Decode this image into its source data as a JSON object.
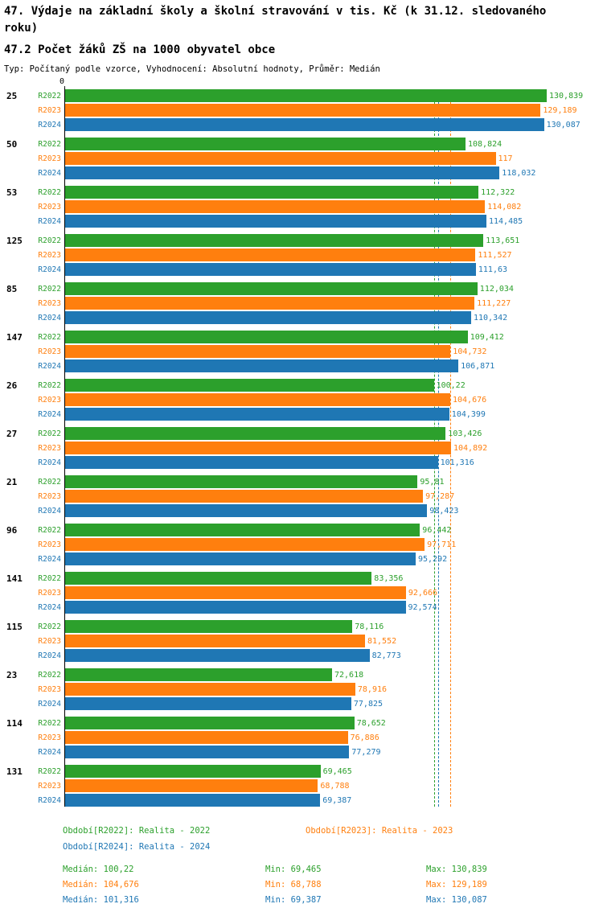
{
  "header": {
    "title": "47. Výdaje na základní školy a školní stravování v tis. Kč (k 31.12. sledovaného roku)",
    "subtitle": "47.2 Počet žáků ZŠ na 1000 obyvatel obce",
    "meta": "Typ: Počítaný podle vzorce, Vyhodnocení: Absolutní hodnoty, Průměr: Medián"
  },
  "colors": {
    "r2022": "#2ca02c",
    "r2023": "#ff7f0e",
    "r2024": "#1f77b4"
  },
  "chart_data": {
    "type": "bar",
    "orientation": "horizontal",
    "title": "47.2 Počet žáků ZŠ na 1000 obyvatel obce",
    "xlabel": "",
    "ylabel": "",
    "x_origin_label": "0",
    "xlim": [
      0,
      130.839
    ],
    "grid": false,
    "legend_position": "bottom",
    "categories": [
      "25",
      "50",
      "53",
      "125",
      "85",
      "147",
      "26",
      "27",
      "21",
      "96",
      "141",
      "115",
      "23",
      "114",
      "131"
    ],
    "series": [
      {
        "name": "R2022",
        "color": "#2ca02c",
        "values": [
          130.839,
          108.824,
          112.322,
          113.651,
          112.034,
          109.412,
          100.22,
          103.426,
          95.81,
          96.442,
          83.356,
          78.116,
          72.618,
          78.652,
          69.465
        ]
      },
      {
        "name": "R2023",
        "color": "#ff7f0e",
        "values": [
          129.189,
          117,
          114.082,
          111.527,
          111.227,
          104.732,
          104.676,
          104.892,
          97.287,
          97.711,
          92.666,
          81.552,
          78.916,
          76.886,
          68.788
        ]
      },
      {
        "name": "R2024",
        "color": "#1f77b4",
        "values": [
          130.087,
          118.032,
          114.485,
          111.63,
          110.342,
          106.871,
          104.399,
          101.316,
          98.423,
          95.292,
          92.574,
          82.773,
          77.825,
          77.279,
          69.387
        ]
      }
    ],
    "median_lines": [
      {
        "series": "R2022",
        "value": 100.22,
        "color": "#2ca02c"
      },
      {
        "series": "R2023",
        "value": 104.676,
        "color": "#ff7f0e"
      },
      {
        "series": "R2024",
        "value": 101.316,
        "color": "#1f77b4"
      }
    ]
  },
  "legend": {
    "items": [
      {
        "label": "Období[R2022]: Realita - 2022",
        "series": "R2022",
        "color": "#2ca02c"
      },
      {
        "label": "Období[R2023]: Realita - 2023",
        "series": "R2023",
        "color": "#ff7f0e"
      },
      {
        "label": "Období[R2024]: Realita - 2024",
        "series": "R2024",
        "color": "#1f77b4"
      }
    ]
  },
  "stats": {
    "rows": [
      {
        "series": "R2022",
        "color": "#2ca02c",
        "median": "Medián: 100,22",
        "min": "Min: 69,465",
        "max": "Max: 130,839"
      },
      {
        "series": "R2023",
        "color": "#ff7f0e",
        "median": "Medián: 104,676",
        "min": "Min: 68,788",
        "max": "Max: 129,189"
      },
      {
        "series": "R2024",
        "color": "#1f77b4",
        "median": "Medián: 101,316",
        "min": "Min: 69,387",
        "max": "Max: 130,087"
      }
    ]
  }
}
